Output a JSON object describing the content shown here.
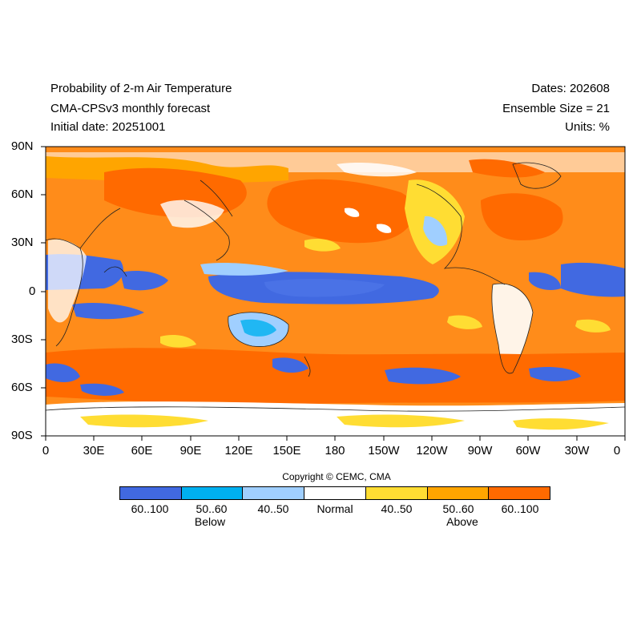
{
  "header": {
    "title": "Probability of 2-m Air Temperature",
    "model": "CMA-CPSv3 monthly forecast",
    "initial_date": "Initial date: 20251001",
    "dates": "Dates: 202608",
    "ensemble": "Ensemble Size = 21",
    "units": "Units: %"
  },
  "axes": {
    "lat_ticks": [
      "90N",
      "60N",
      "30N",
      "0",
      "30S",
      "60S",
      "90S"
    ],
    "lon_ticks": [
      "0",
      "30E",
      "60E",
      "90E",
      "120E",
      "150E",
      "180",
      "150W",
      "120W",
      "90W",
      "60W",
      "30W",
      "0"
    ]
  },
  "copyright": "Copyright © CEMC, CMA",
  "legend": {
    "categories": [
      {
        "label": "60..100",
        "color": "#4169e1"
      },
      {
        "label": "50..60",
        "color": "#00b0f0"
      },
      {
        "label": "40..50",
        "color": "#a0cfff"
      },
      {
        "label": "Normal",
        "color": "#ffffff"
      },
      {
        "label": "40..50",
        "color": "#ffdd33"
      },
      {
        "label": "50..60",
        "color": "#ffa500"
      },
      {
        "label": "60..100",
        "color": "#ff6a00"
      }
    ],
    "group_below": "Below",
    "group_above": "Above"
  }
}
